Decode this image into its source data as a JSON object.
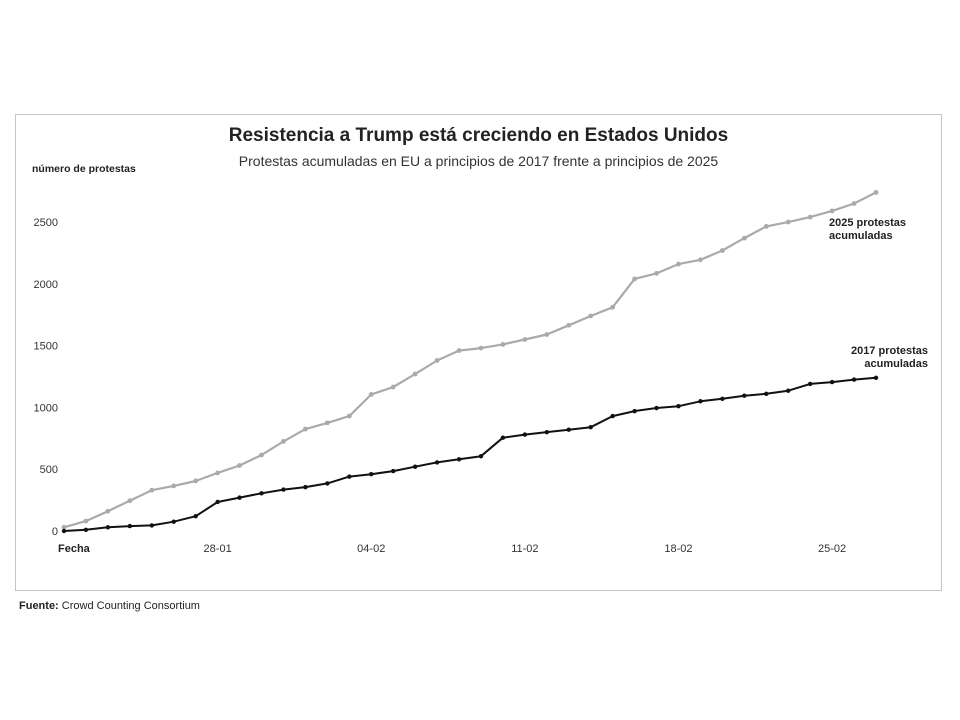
{
  "chart_data": {
    "type": "line",
    "title": "Resistencia a Trump está creciendo en Estados Unidos",
    "subtitle": "Protestas acumuladas en EU a principios de 2017 frente a principios de 2025",
    "ylabel": "número de protestas",
    "xlabel": "Fecha",
    "ylim": [
      0,
      2800
    ],
    "y_ticks": [
      0,
      500,
      1000,
      1500,
      2000,
      2500
    ],
    "x_tick_labels": [
      "28-01",
      "04-02",
      "11-02",
      "18-02",
      "25-02"
    ],
    "x_tick_index": [
      7,
      14,
      21,
      28,
      35
    ],
    "grid": false,
    "series": [
      {
        "name": "2025 protestas acumuladas",
        "color": "#aaaaaa",
        "values": [
          30,
          80,
          160,
          245,
          330,
          365,
          405,
          470,
          530,
          615,
          725,
          825,
          875,
          930,
          1105,
          1165,
          1270,
          1380,
          1460,
          1480,
          1510,
          1550,
          1590,
          1665,
          1740,
          1810,
          2040,
          2085,
          2160,
          2195,
          2270,
          2370,
          2465,
          2500,
          2540,
          2590,
          2650,
          2740
        ]
      },
      {
        "name": "2017 protestas acumuladas",
        "color": "#111111",
        "values": [
          0,
          10,
          30,
          40,
          45,
          75,
          120,
          235,
          270,
          305,
          335,
          355,
          385,
          440,
          460,
          485,
          520,
          555,
          580,
          605,
          755,
          780,
          800,
          820,
          840,
          930,
          970,
          995,
          1010,
          1050,
          1070,
          1095,
          1110,
          1135,
          1190,
          1205,
          1225,
          1240
        ]
      }
    ]
  },
  "source": {
    "label": "Fuente:",
    "text": "Crowd Counting Consortium"
  }
}
